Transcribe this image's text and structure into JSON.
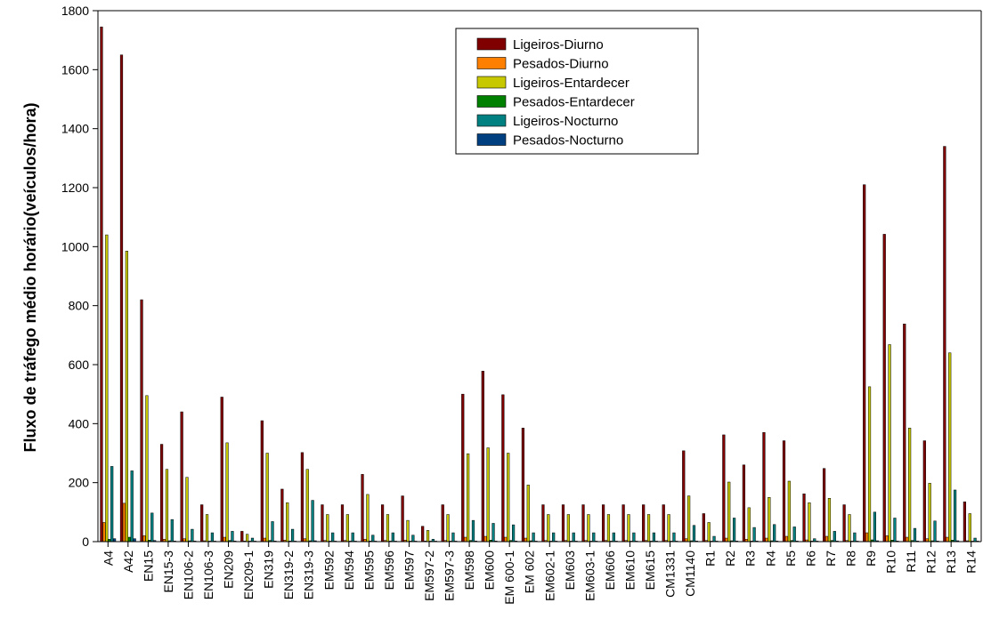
{
  "chart_data": {
    "type": "bar",
    "title": "",
    "xlabel": "",
    "ylabel": "Fluxo de tráfego médio horário(veículos/hora)",
    "ylim": [
      0,
      1800
    ],
    "yticks": [
      0,
      200,
      400,
      600,
      800,
      1000,
      1200,
      1400,
      1600,
      1800
    ],
    "grid": false,
    "legend_position": "top-right",
    "categories": [
      "A4",
      "A42",
      "EN15",
      "EN15-3",
      "EN106-2",
      "EN106-3",
      "EN209",
      "EN209-1",
      "EN319",
      "EN319-2",
      "EN319-3",
      "EM592",
      "EM594",
      "EM595",
      "EM596",
      "EM597",
      "EM597-2",
      "EM597-3",
      "EM598",
      "EM600",
      "EM 600-1",
      "EM 602",
      "EM602-1",
      "EM603",
      "EM603-1",
      "EM606",
      "EM610",
      "EM615",
      "CM1331",
      "CM1140",
      "R1",
      "R2",
      "R3",
      "R4",
      "R5",
      "R6",
      "R7",
      "R8",
      "R9",
      "R10",
      "R11",
      "R12",
      "R13",
      "R14"
    ],
    "series": [
      {
        "name": "Ligeiros-Diurno",
        "color": "#800000",
        "values": [
          1745,
          1650,
          820,
          330,
          440,
          125,
          490,
          35,
          410,
          178,
          302,
          125,
          125,
          228,
          125,
          155,
          52,
          125,
          500,
          578,
          498,
          385,
          125,
          125,
          125,
          125,
          125,
          125,
          125,
          308,
          95,
          362,
          260,
          370,
          342,
          162,
          248,
          125,
          1210,
          1042,
          738,
          342,
          1340,
          135
        ]
      },
      {
        "name": "Pesados-Diurno",
        "color": "#ff8000",
        "values": [
          65,
          130,
          20,
          8,
          10,
          3,
          15,
          2,
          12,
          5,
          10,
          4,
          4,
          8,
          4,
          5,
          2,
          4,
          15,
          18,
          15,
          12,
          4,
          4,
          4,
          4,
          4,
          4,
          4,
          10,
          4,
          12,
          8,
          12,
          18,
          6,
          18,
          4,
          30,
          20,
          15,
          10,
          15,
          3
        ]
      },
      {
        "name": "Ligeiros-Entardecer",
        "color": "#c8c800",
        "values": [
          1040,
          985,
          495,
          245,
          218,
          92,
          335,
          25,
          300,
          132,
          245,
          92,
          92,
          160,
          92,
          72,
          38,
          92,
          298,
          318,
          300,
          192,
          92,
          92,
          92,
          92,
          92,
          92,
          92,
          155,
          65,
          202,
          115,
          150,
          205,
          132,
          147,
          92,
          525,
          668,
          385,
          198,
          640,
          95
        ]
      },
      {
        "name": "Pesados-Entardecer",
        "color": "#008000",
        "values": [
          8,
          15,
          5,
          3,
          3,
          1,
          4,
          1,
          4,
          2,
          3,
          1,
          1,
          2,
          1,
          1,
          1,
          1,
          4,
          5,
          4,
          3,
          1,
          1,
          1,
          1,
          1,
          1,
          1,
          3,
          1,
          3,
          2,
          3,
          4,
          2,
          4,
          1,
          6,
          5,
          4,
          3,
          5,
          1
        ]
      },
      {
        "name": "Ligeiros-Nocturno",
        "color": "#008080",
        "values": [
          255,
          240,
          97,
          75,
          42,
          30,
          35,
          12,
          68,
          42,
          140,
          30,
          30,
          22,
          30,
          22,
          8,
          30,
          72,
          62,
          57,
          30,
          30,
          30,
          30,
          30,
          30,
          30,
          30,
          55,
          18,
          80,
          48,
          58,
          50,
          10,
          35,
          30,
          100,
          80,
          45,
          70,
          175,
          12
        ]
      },
      {
        "name": "Pesados-Nocturno",
        "color": "#004080",
        "values": [
          10,
          10,
          4,
          2,
          2,
          1,
          2,
          1,
          2,
          1,
          3,
          1,
          1,
          1,
          1,
          1,
          1,
          1,
          2,
          2,
          2,
          1,
          1,
          1,
          1,
          1,
          1,
          1,
          1,
          2,
          1,
          2,
          2,
          2,
          2,
          1,
          2,
          1,
          3,
          2,
          2,
          2,
          3,
          1
        ]
      }
    ]
  }
}
